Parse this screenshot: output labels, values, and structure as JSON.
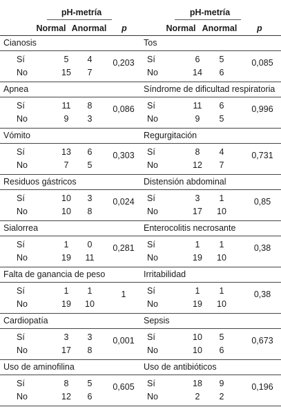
{
  "header": {
    "ph_label": "pH-metría",
    "normal_label": "Normal",
    "anormal_label": "Anormal",
    "p_label": "p"
  },
  "row_labels": {
    "yes": "Sí",
    "no": "No"
  },
  "left": [
    {
      "title": "Cianosis",
      "si": [
        "5",
        "4"
      ],
      "no": [
        "15",
        "7"
      ],
      "p": "0,203"
    },
    {
      "title": "Apnea",
      "si": [
        "11",
        "8"
      ],
      "no": [
        "9",
        "3"
      ],
      "p": "0,086"
    },
    {
      "title": "Vómito",
      "si": [
        "13",
        "6"
      ],
      "no": [
        "7",
        "5"
      ],
      "p": "0,303"
    },
    {
      "title": "Residuos gástricos",
      "si": [
        "10",
        "3"
      ],
      "no": [
        "10",
        "8"
      ],
      "p": "0,024"
    },
    {
      "title": "Sialorrea",
      "si": [
        "1",
        "0"
      ],
      "no": [
        "19",
        "11"
      ],
      "p": "0,281"
    },
    {
      "title": "Falta de ganancia de peso",
      "si": [
        "1",
        "1"
      ],
      "no": [
        "19",
        "10"
      ],
      "p": "1"
    },
    {
      "title": "Cardiopatía",
      "si": [
        "3",
        "3"
      ],
      "no": [
        "17",
        "8"
      ],
      "p": "0,001"
    },
    {
      "title": "Uso de aminofilina",
      "si": [
        "8",
        "5"
      ],
      "no": [
        "12",
        "6"
      ],
      "p": "0,605"
    }
  ],
  "right": [
    {
      "title": "Tos",
      "si": [
        "6",
        "5"
      ],
      "no": [
        "14",
        "6"
      ],
      "p": "0,085"
    },
    {
      "title": "Síndrome de dificultad respiratoria",
      "si": [
        "11",
        "6"
      ],
      "no": [
        "9",
        "5"
      ],
      "p": "0,996"
    },
    {
      "title": "Regurgitación",
      "si": [
        "8",
        "4"
      ],
      "no": [
        "12",
        "7"
      ],
      "p": "0,731"
    },
    {
      "title": "Distensión abdominal",
      "si": [
        "3",
        "1"
      ],
      "no": [
        "17",
        "10"
      ],
      "p": "0,85"
    },
    {
      "title": "Enterocolitis necrosante",
      "si": [
        "1",
        "1"
      ],
      "no": [
        "19",
        "10"
      ],
      "p": "0,38"
    },
    {
      "title": "Irritabilidad",
      "si": [
        "1",
        "1"
      ],
      "no": [
        "19",
        "10"
      ],
      "p": "0,38"
    },
    {
      "title": "Sepsis",
      "si": [
        "10",
        "5"
      ],
      "no": [
        "10",
        "6"
      ],
      "p": "0,673"
    },
    {
      "title": "Uso de antibióticos",
      "si": [
        "18",
        "9"
      ],
      "no": [
        "2",
        "2"
      ],
      "p": "0,196"
    }
  ]
}
